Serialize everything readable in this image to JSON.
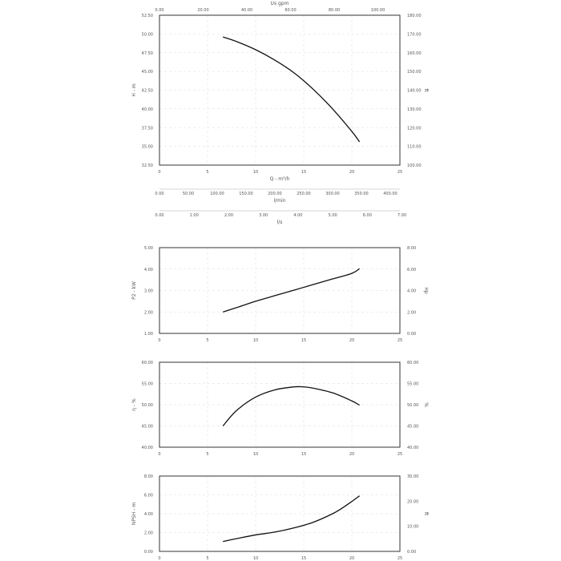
{
  "chart_data": [
    {
      "id": "head",
      "type": "line",
      "ylabel": "H - m",
      "y2label": "ft",
      "xlabel": "Q - m³/h",
      "xlim": [
        0,
        25
      ],
      "ylim": [
        32.5,
        52.5
      ],
      "y2lim": [
        100,
        180
      ],
      "x_ticks": [
        "0",
        "5",
        "10",
        "15",
        "20",
        "25"
      ],
      "y_ticks": [
        "52.50",
        "50.00",
        "47.50",
        "45.00",
        "42.50",
        "40.00",
        "37.50",
        "35.00",
        "32.50"
      ],
      "y2_ticks": [
        "180.00",
        "170.00",
        "160.00",
        "150.00",
        "140.00",
        "130.00",
        "120.00",
        "110.00",
        "100.00"
      ],
      "top_axis": {
        "label": "Us gpm",
        "ticks": [
          "0.00",
          "20.00",
          "40.00",
          "60.00",
          "80.00",
          "100.00"
        ],
        "max": 110.07
      },
      "extra_axes": [
        {
          "label": "l/min",
          "ticks": [
            "0.00",
            "50.00",
            "100.00",
            "150.00",
            "200.00",
            "250.00",
            "300.00",
            "350.00",
            "400.00"
          ],
          "max": 416.67
        },
        {
          "label": "l/s",
          "ticks": [
            "0.00",
            "1.00",
            "2.00",
            "3.00",
            "4.00",
            "5.00",
            "6.00",
            "7.00"
          ],
          "max": 6.94
        }
      ],
      "x": [
        6.6,
        8,
        10,
        12,
        14,
        16,
        18,
        20,
        20.8
      ],
      "y": [
        49.6,
        49.0,
        47.9,
        46.5,
        44.8,
        42.6,
        40.0,
        37.0,
        35.6
      ]
    },
    {
      "id": "power",
      "type": "line",
      "ylabel": "P2 - kW",
      "y2label": "Hp",
      "xlim": [
        0,
        25
      ],
      "ylim": [
        1,
        5
      ],
      "y2lim": [
        0,
        8
      ],
      "x_ticks": [
        "0",
        "5",
        "10",
        "15",
        "20",
        "25"
      ],
      "y_ticks": [
        "5.00",
        "4.00",
        "3.00",
        "2.00",
        "1.00"
      ],
      "y2_ticks": [
        "8.00",
        "6.00",
        "4.00",
        "2.00",
        "0.00"
      ],
      "x": [
        6.6,
        8,
        10,
        12,
        14,
        16,
        18,
        20,
        20.8
      ],
      "y": [
        2.0,
        2.2,
        2.5,
        2.76,
        3.02,
        3.28,
        3.54,
        3.8,
        4.02
      ]
    },
    {
      "id": "efficiency",
      "type": "line",
      "ylabel": "η - %",
      "y2label": "%",
      "xlim": [
        0,
        25
      ],
      "ylim": [
        40,
        60
      ],
      "y2lim": [
        40,
        60
      ],
      "x_ticks": [
        "0",
        "5",
        "10",
        "15",
        "20",
        "25"
      ],
      "y_ticks": [
        "60.00",
        "55.00",
        "50.00",
        "45.00",
        "40.00"
      ],
      "y2_ticks": [
        "60.00",
        "55.00",
        "50.00",
        "45.00",
        "40.00"
      ],
      "x": [
        6.6,
        8,
        10,
        12,
        14,
        15,
        16,
        18,
        20,
        20.8
      ],
      "y": [
        45.0,
        48.6,
        51.8,
        53.5,
        54.2,
        54.2,
        53.9,
        52.8,
        50.9,
        49.9
      ]
    },
    {
      "id": "npsh",
      "type": "line",
      "ylabel": "NPSH - m",
      "y2label": "ft",
      "xlim": [
        0,
        25
      ],
      "ylim": [
        0,
        8
      ],
      "y2lim": [
        0,
        30
      ],
      "x_ticks": [
        "0",
        "5",
        "10",
        "15",
        "20",
        "25"
      ],
      "y_ticks": [
        "8.00",
        "6.00",
        "4.00",
        "2.00",
        "0.00"
      ],
      "y2_ticks": [
        "30.00",
        "20.00",
        "10.00",
        "0.00"
      ],
      "x": [
        6.6,
        8,
        10,
        12,
        14,
        16,
        18,
        19,
        20,
        20.8
      ],
      "y": [
        1.05,
        1.35,
        1.75,
        2.05,
        2.5,
        3.1,
        4.0,
        4.6,
        5.3,
        5.9
      ]
    }
  ]
}
